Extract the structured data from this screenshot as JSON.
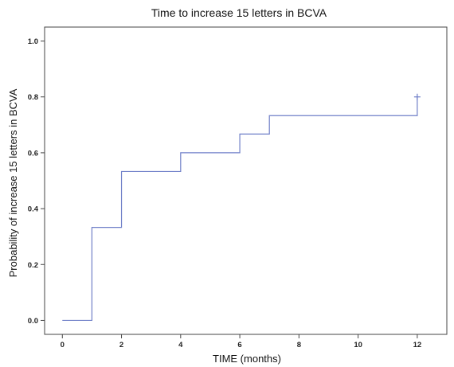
{
  "chart_data": {
    "type": "line",
    "step": true,
    "title": "Time to increase 15 letters in BCVA",
    "xlabel": "TIME (months)",
    "ylabel": "Probability of increase 15 letters in BCVA",
    "xlim": [
      -0.6,
      13
    ],
    "ylim": [
      -0.05,
      1.05
    ],
    "xticks": [
      0,
      2,
      4,
      6,
      8,
      10,
      12
    ],
    "yticks": [
      0.0,
      0.2,
      0.4,
      0.6,
      0.8,
      1.0
    ],
    "xtick_labels": [
      "0",
      "2",
      "4",
      "6",
      "8",
      "10",
      "12"
    ],
    "ytick_labels": [
      "0.0",
      "0.2",
      "0.4",
      "0.6",
      "0.8",
      "1.0"
    ],
    "grid": false,
    "line_color": "#6f7fc8",
    "series": [
      {
        "x": [
          0,
          1,
          2,
          4,
          6,
          7,
          12
        ],
        "y": [
          0.0,
          0.333,
          0.533,
          0.6,
          0.667,
          0.733,
          0.8
        ]
      }
    ],
    "censored": [
      {
        "x": 12,
        "y": 0.8
      }
    ]
  }
}
